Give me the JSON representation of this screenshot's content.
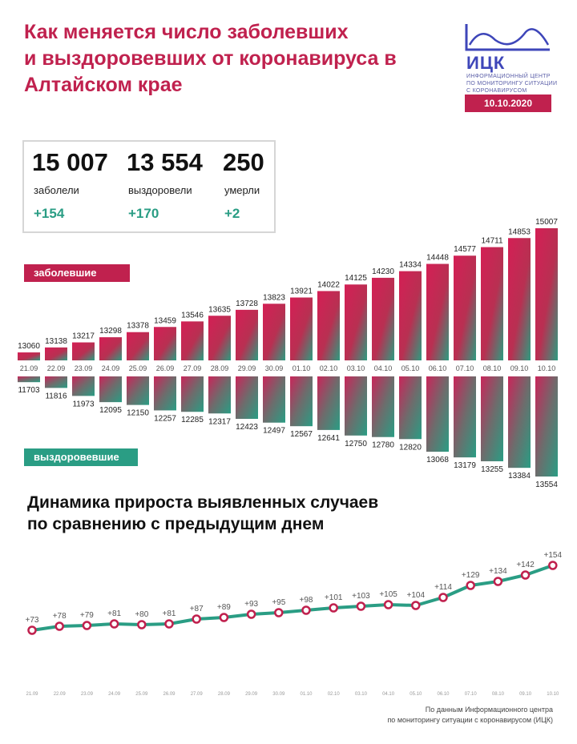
{
  "header": {
    "title_lines": [
      "Как меняется число заболевших",
      "и выздоровевших от коронавируса в",
      "Алтайском крае"
    ],
    "logo_name": "ИЦК",
    "logo_lines": [
      "ИНФОРМАЦИОННЫЙ ЦЕНТР",
      "ПО МОНИТОРИНГУ СИТУАЦИИ",
      "С КОРОНАВИРУСОМ"
    ],
    "date": "10.10.2020",
    "brand_color": "#c0214e",
    "logo_color": "#3e46b9",
    "accent_color": "#2a9d84"
  },
  "stats": [
    {
      "value": "15 007",
      "label": "заболели",
      "delta": "+154"
    },
    {
      "value": "13 554",
      "label": "выздоровели",
      "delta": "+170"
    },
    {
      "value": "250",
      "label": "умерли",
      "delta": "+2"
    }
  ],
  "legend": {
    "sick": "заболевшие",
    "recovered": "выздоровевшие"
  },
  "section_title_lines": [
    "Динамика прироста выявленных случаев",
    "по сравнению с предыдущим днем"
  ],
  "source_lines": [
    "По данным Информационного центра",
    "по мониторингу ситуации с коронавирусом (ИЦК)"
  ],
  "chart_data": [
    {
      "type": "bar",
      "categories": [
        "21.09",
        "22.09",
        "23.09",
        "24.09",
        "25.09",
        "26.09",
        "27.09",
        "28.09",
        "29.09",
        "30.09",
        "01.10",
        "02.10",
        "03.10",
        "04.10",
        "05.10",
        "06.10",
        "07.10",
        "08.10",
        "09.10",
        "10.10"
      ],
      "series": [
        {
          "name": "заболевшие",
          "values": [
            13060,
            13138,
            13217,
            13298,
            13378,
            13459,
            13546,
            13635,
            13728,
            13823,
            13921,
            14022,
            14125,
            14230,
            14334,
            14448,
            14577,
            14711,
            14853,
            15007
          ]
        },
        {
          "name": "выздоровевшие",
          "values": [
            11703,
            11816,
            11973,
            12095,
            12150,
            12257,
            12285,
            12317,
            12423,
            12497,
            12567,
            12641,
            12750,
            12780,
            12820,
            13068,
            13179,
            13255,
            13384,
            13554
          ]
        }
      ]
    },
    {
      "type": "line",
      "title": "Динамика прироста выявленных случаев по сравнению с предыдущим днем",
      "categories": [
        "21.09",
        "22.09",
        "23.09",
        "24.09",
        "25.09",
        "26.09",
        "27.09",
        "28.09",
        "29.09",
        "30.09",
        "01.10",
        "02.10",
        "03.10",
        "04.10",
        "05.10",
        "06.10",
        "07.10",
        "08.10",
        "09.10",
        "10.10"
      ],
      "values": [
        73,
        78,
        79,
        81,
        80,
        81,
        87,
        89,
        93,
        95,
        98,
        101,
        103,
        105,
        104,
        114,
        129,
        134,
        142,
        154
      ],
      "labels": [
        "+73",
        "+78",
        "+79",
        "+81",
        "+80",
        "+81",
        "+87",
        "+89",
        "+93",
        "+95",
        "+98",
        "+101",
        "+103",
        "+105",
        "+104",
        "+114",
        "+129",
        "+134",
        "+142",
        "+154"
      ]
    }
  ]
}
